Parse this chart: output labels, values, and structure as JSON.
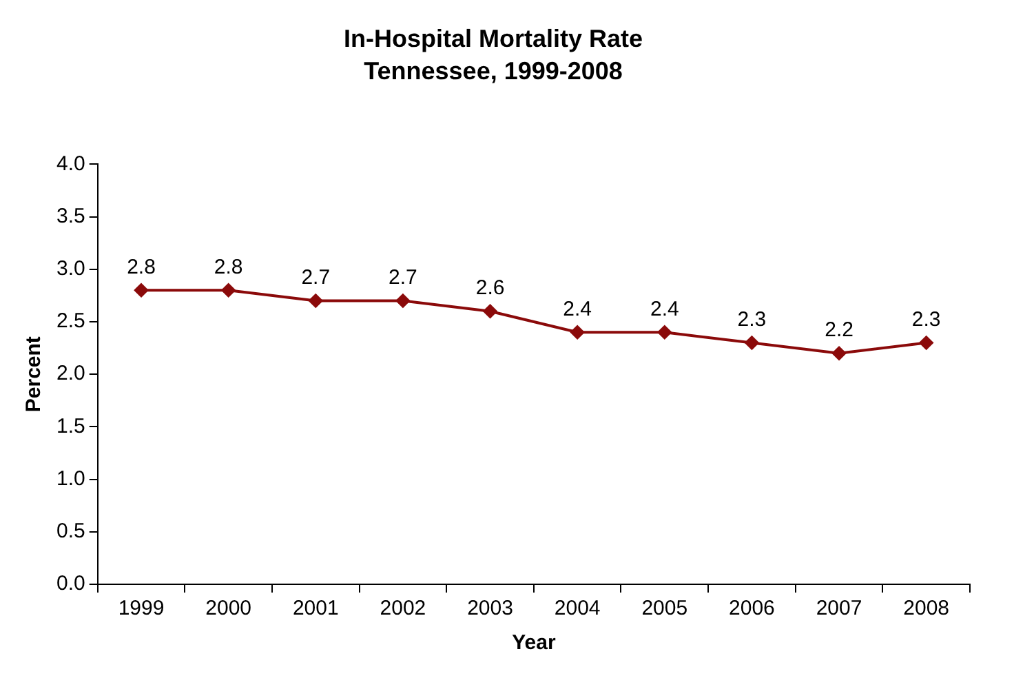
{
  "chart_data": {
    "type": "line",
    "title": "In-Hospital Mortality Rate",
    "subtitle": "Tennessee, 1999-2008",
    "xlabel": "Year",
    "ylabel": "Percent",
    "categories": [
      "1999",
      "2000",
      "2001",
      "2002",
      "2003",
      "2004",
      "2005",
      "2006",
      "2007",
      "2008"
    ],
    "series": [
      {
        "color": "#8b0a0a",
        "values": [
          2.8,
          2.8,
          2.7,
          2.7,
          2.6,
          2.4,
          2.4,
          2.3,
          2.2,
          2.3
        ]
      }
    ],
    "ylim": [
      0,
      4
    ],
    "yticks": [
      {
        "value": 0,
        "label": "0.0"
      },
      0.5,
      {
        "value": 1,
        "label": "1.0"
      },
      1.5,
      {
        "value": 2,
        "label": "2.0"
      },
      2.5,
      {
        "value": 3,
        "label": "3.0"
      },
      3.5,
      {
        "value": 4,
        "label": "4.0"
      }
    ],
    "grid": false,
    "legend": false,
    "marker": "diamond",
    "line_style": "solid",
    "data_labels": true
  }
}
